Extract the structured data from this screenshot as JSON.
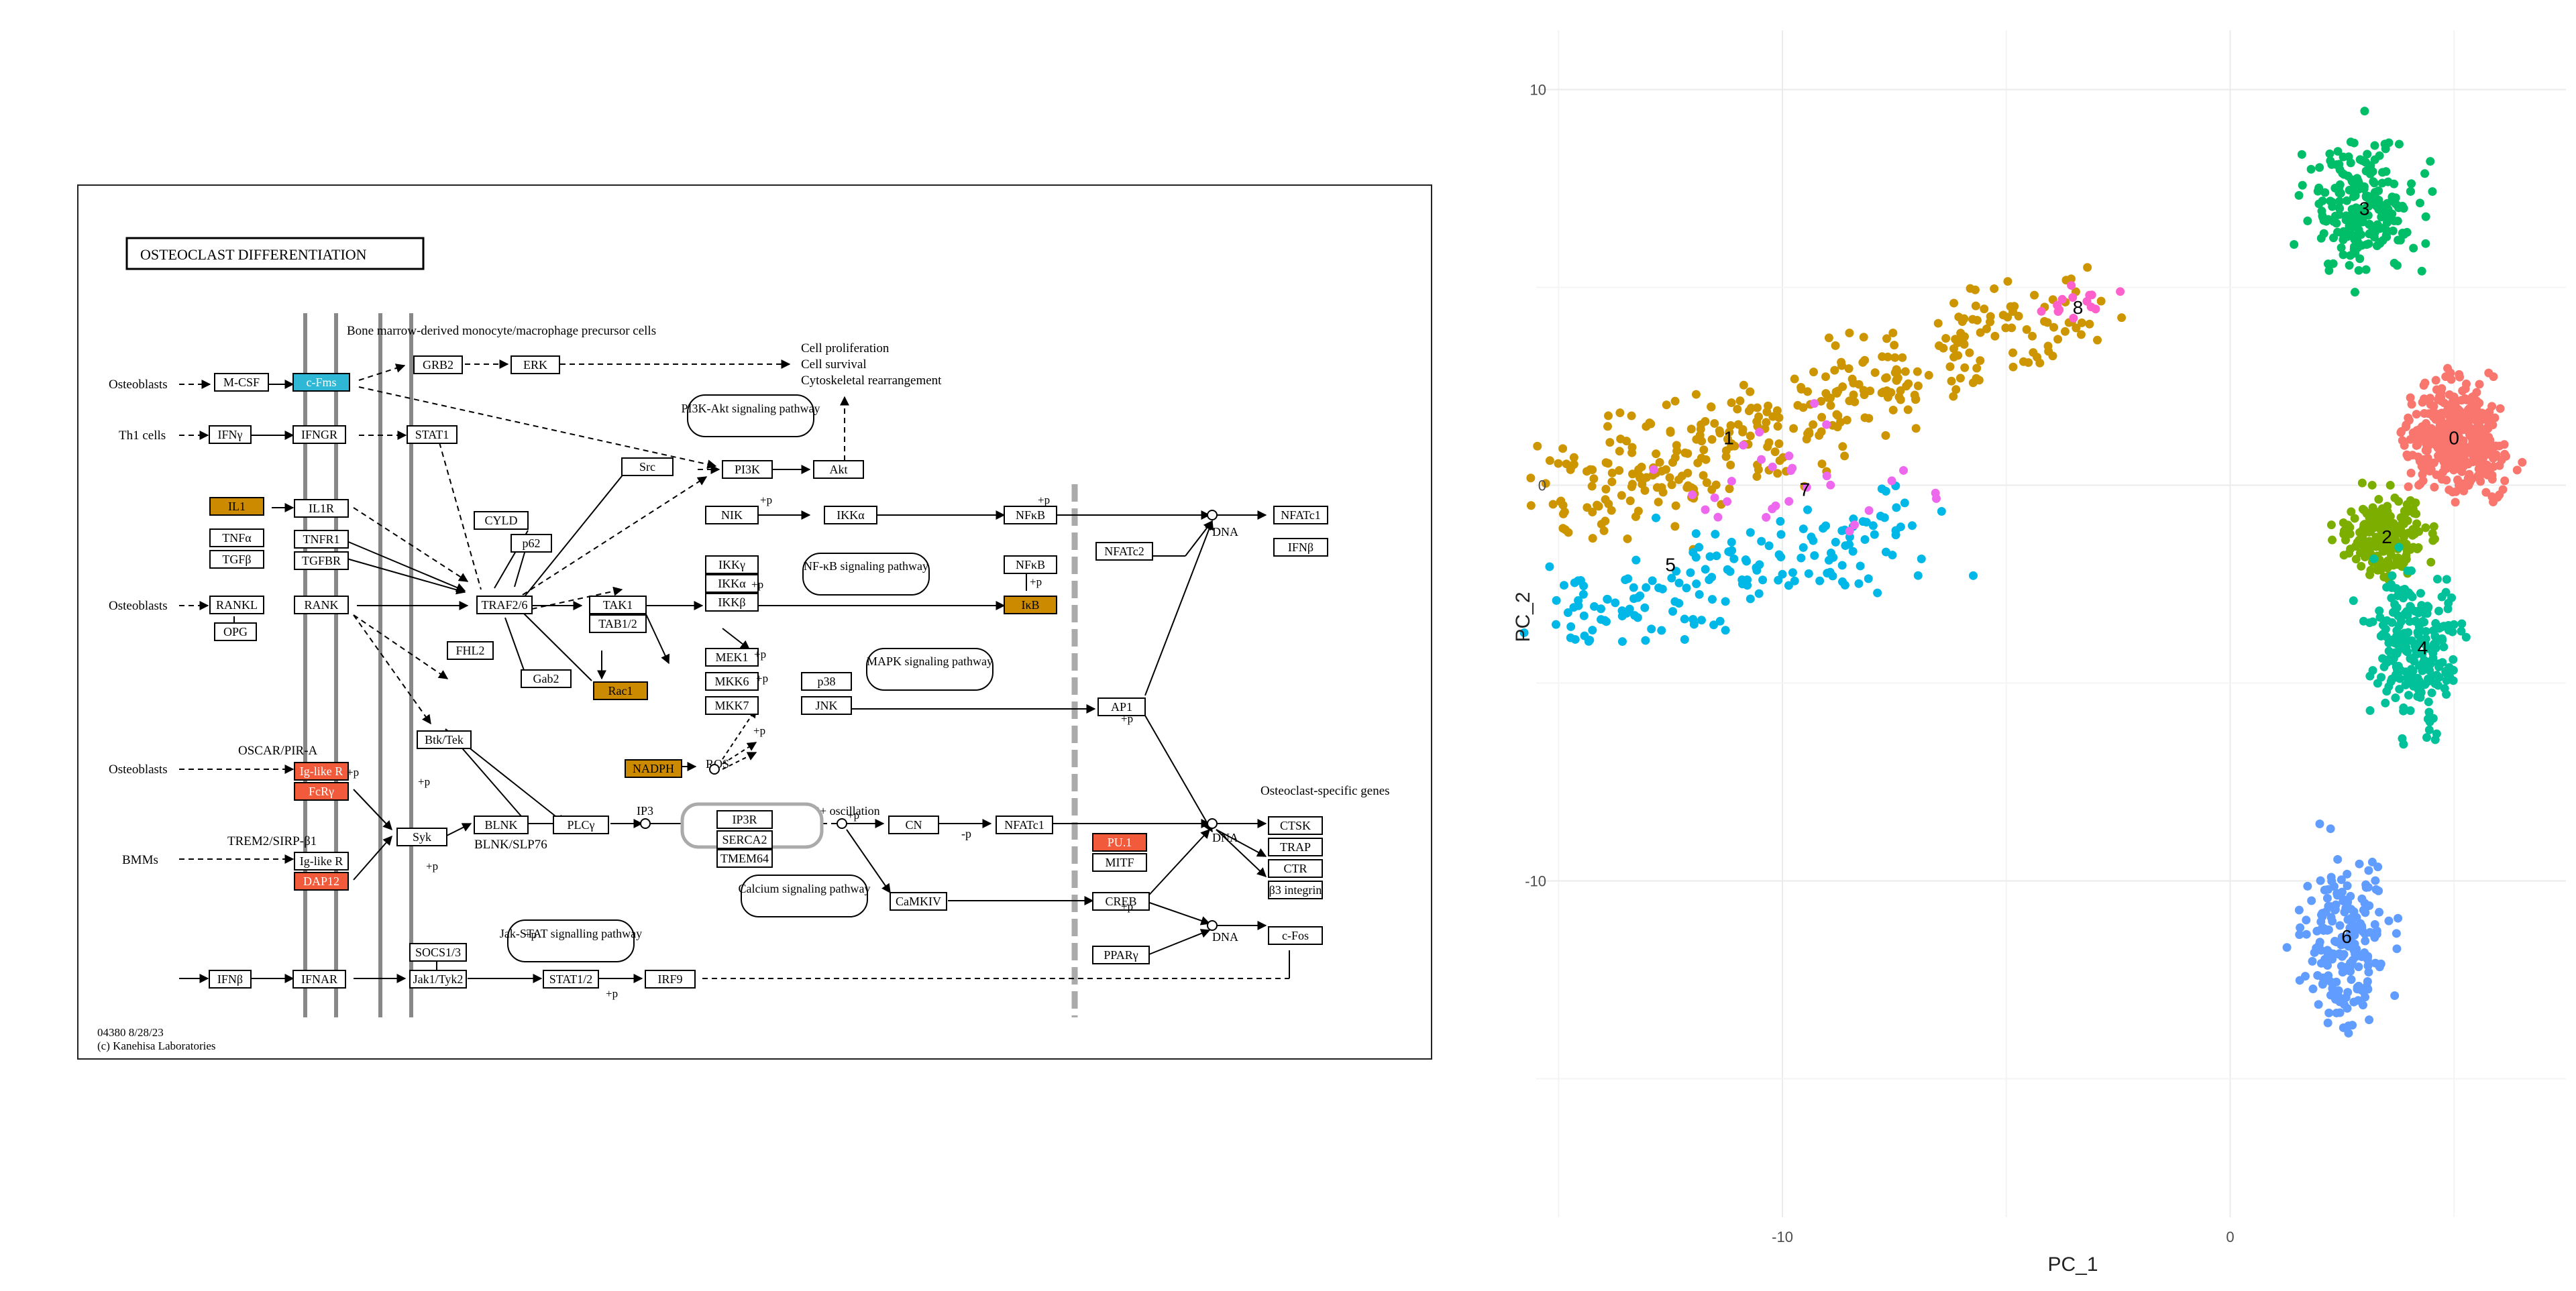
{
  "pathway": {
    "title": "OSTEOCLAST DIFFERENTIATION",
    "footer_id": "04380 8/28/23",
    "footer_copy": "(c) Kanehisa Laboratories",
    "headers": {
      "precursor": "Bone marrow-derived monocyte/macrophage precursor cells",
      "specific_genes": "Osteoclast-specific genes"
    },
    "outputs": [
      "Cell proliferation",
      "Cell survival",
      "Cytoskeletal rearrangement"
    ],
    "cells": [
      "Osteoblasts",
      "Th1 cells",
      "Osteoblasts",
      "Osteoblasts",
      "BMMs"
    ],
    "receptor_labels": [
      "OSCAR/PIR-A",
      "TREM2/SIRP-β1"
    ],
    "pathway_links": [
      "PI3K-Akt signaling pathway",
      "NF-κB signaling pathway",
      "MAPK signaling pathway",
      "Calcium signaling pathway",
      "Jak-STAT signalling pathway"
    ],
    "dna_label": "DNA",
    "small_labels": [
      "+p",
      "-p",
      "ROS",
      "IP3",
      "Ca2+ oscillation",
      "BLNK/SLP76"
    ],
    "colors": {
      "blue": "#2eb8d6",
      "orange": "#cc8a00",
      "red": "#f25a3c"
    },
    "genes": {
      "M-CSF": "M-CSF",
      "c-Fms": "c-Fms",
      "GRB2": "GRB2",
      "ERK": "ERK",
      "IFNy": "IFNγ",
      "IFNGR": "IFNGR",
      "STAT1": "STAT1",
      "IL1": "IL1",
      "IL1R": "IL1R",
      "TNFa": "TNFα",
      "TNFR1": "TNFR1",
      "TGFb": "TGFβ",
      "TGFBR": "TGFBR",
      "RANKL": "RANKL",
      "RANK": "RANK",
      "OPG": "OPG",
      "CYLD": "CYLD",
      "p62": "p62",
      "TRAF2/6": "TRAF2/6",
      "FHL2": "FHL2",
      "Src": "Src",
      "PI3K": "PI3K",
      "Akt": "Akt",
      "NIK": "NIK",
      "IKKa": "IKKα",
      "NFkB": "NFκB",
      "IKKy": "IKKγ",
      "IKKa2": "IKKα",
      "IKKb": "IKKβ",
      "NFkB2": "NFκB",
      "IkB": "IκB",
      "TAK1": "TAK1",
      "TAB1/2": "TAB1/2",
      "Gab2": "Gab2",
      "Rac1": "Rac1",
      "MEK1": "MEK1",
      "MKK6": "MKK6",
      "MKK7": "MKK7",
      "p38": "p38",
      "JNK": "JNK",
      "NADPH": "NADPH",
      "AP1": "AP1",
      "NFATc1": "NFATc1",
      "NFATc2": "NFATc2",
      "NFATc1b": "NFATc1",
      "IFNb": "IFNβ",
      "Btk/Tek": "Btk/Tek",
      "Ig-like R": "Ig-like R",
      "FcRy": "FcRγ",
      "Syk": "Syk",
      "BLNK": "BLNK",
      "PLCy": "PLCγ",
      "IP3R": "IP3R",
      "SERCA2": "SERCA2",
      "TMEM64": "TMEM64",
      "CN": "CN",
      "NFATc1c": "NFATc1",
      "PU.1": "PU.1",
      "MITF": "MITF",
      "Ig-like R2": "Ig-like R",
      "DAP12": "DAP12",
      "CaMKIV": "CaMKIV",
      "CREB": "CREB",
      "PPARy": "PPARγ",
      "SOCS1/3": "SOCS1/3",
      "IFNb2": "IFNβ",
      "IFNAR": "IFNAR",
      "Jak1/Tyk2": "Jak1/Tyk2",
      "STAT1/2": "STAT1/2",
      "IRF9": "IRF9",
      "CTSK": "CTSK",
      "TRAP": "TRAP",
      "CTR": "CTR",
      "b3": "β3 integrin",
      "c-Fos": "c-Fos"
    }
  },
  "chart_data": {
    "type": "scatter",
    "xlabel": "PC_1",
    "ylabel": "PC_2",
    "xticks": [
      -10,
      0
    ],
    "yticks": [
      10,
      0,
      -10
    ],
    "xlim": [
      -15.5,
      7.5
    ],
    "ylim": [
      -18.5,
      11.5
    ],
    "grid": true,
    "legend": "none",
    "clusters": [
      {
        "label": "0",
        "color": "#f8766d",
        "center": [
          5.0,
          1.2
        ],
        "spread": [
          1.3,
          1.5
        ],
        "n": 420
      },
      {
        "label": "1",
        "color": "#cd9600",
        "center": [
          -10.5,
          1.2
        ],
        "spread": [
          3.0,
          1.5
        ],
        "n": 360
      },
      {
        "label": "2",
        "color": "#7cae00",
        "center": [
          3.5,
          -1.3
        ],
        "spread": [
          1.1,
          1.2
        ],
        "n": 220
      },
      {
        "label": "3",
        "color": "#00be67",
        "center": [
          3.0,
          7.0
        ],
        "spread": [
          1.4,
          1.8
        ],
        "n": 230
      },
      {
        "label": "4",
        "color": "#00c19a",
        "center": [
          4.2,
          -4.1
        ],
        "spread": [
          1.2,
          2.1
        ],
        "n": 240
      },
      {
        "label": "5",
        "color": "#00b8e7",
        "center": [
          -12.5,
          -2.9
        ],
        "spread": [
          1.8,
          1.3
        ],
        "n": 170
      },
      {
        "label": "6",
        "color": "#619cff",
        "center": [
          2.6,
          -11.5
        ],
        "spread": [
          1.2,
          2.6
        ],
        "n": 200
      },
      {
        "label": "7",
        "color": "#ed68ed",
        "center": [
          -9.5,
          -0.1
        ],
        "spread": [
          3.0,
          2.0
        ],
        "n": 30
      },
      {
        "label": "8",
        "color": "#ff61cc",
        "center": [
          -3.4,
          4.5
        ],
        "spread": [
          0.9,
          0.6
        ],
        "n": 14
      }
    ],
    "cluster_label_positions": {
      "0": [
        5.0,
        1.2
      ],
      "1": [
        -11.2,
        1.2
      ],
      "2": [
        3.5,
        -1.3
      ],
      "3": [
        3.0,
        7.0
      ],
      "4": [
        4.3,
        -4.1
      ],
      "5": [
        -12.5,
        -2.0
      ],
      "6": [
        2.6,
        -11.4
      ],
      "7": [
        -9.5,
        -0.1
      ],
      "8": [
        -3.4,
        4.5
      ]
    }
  }
}
